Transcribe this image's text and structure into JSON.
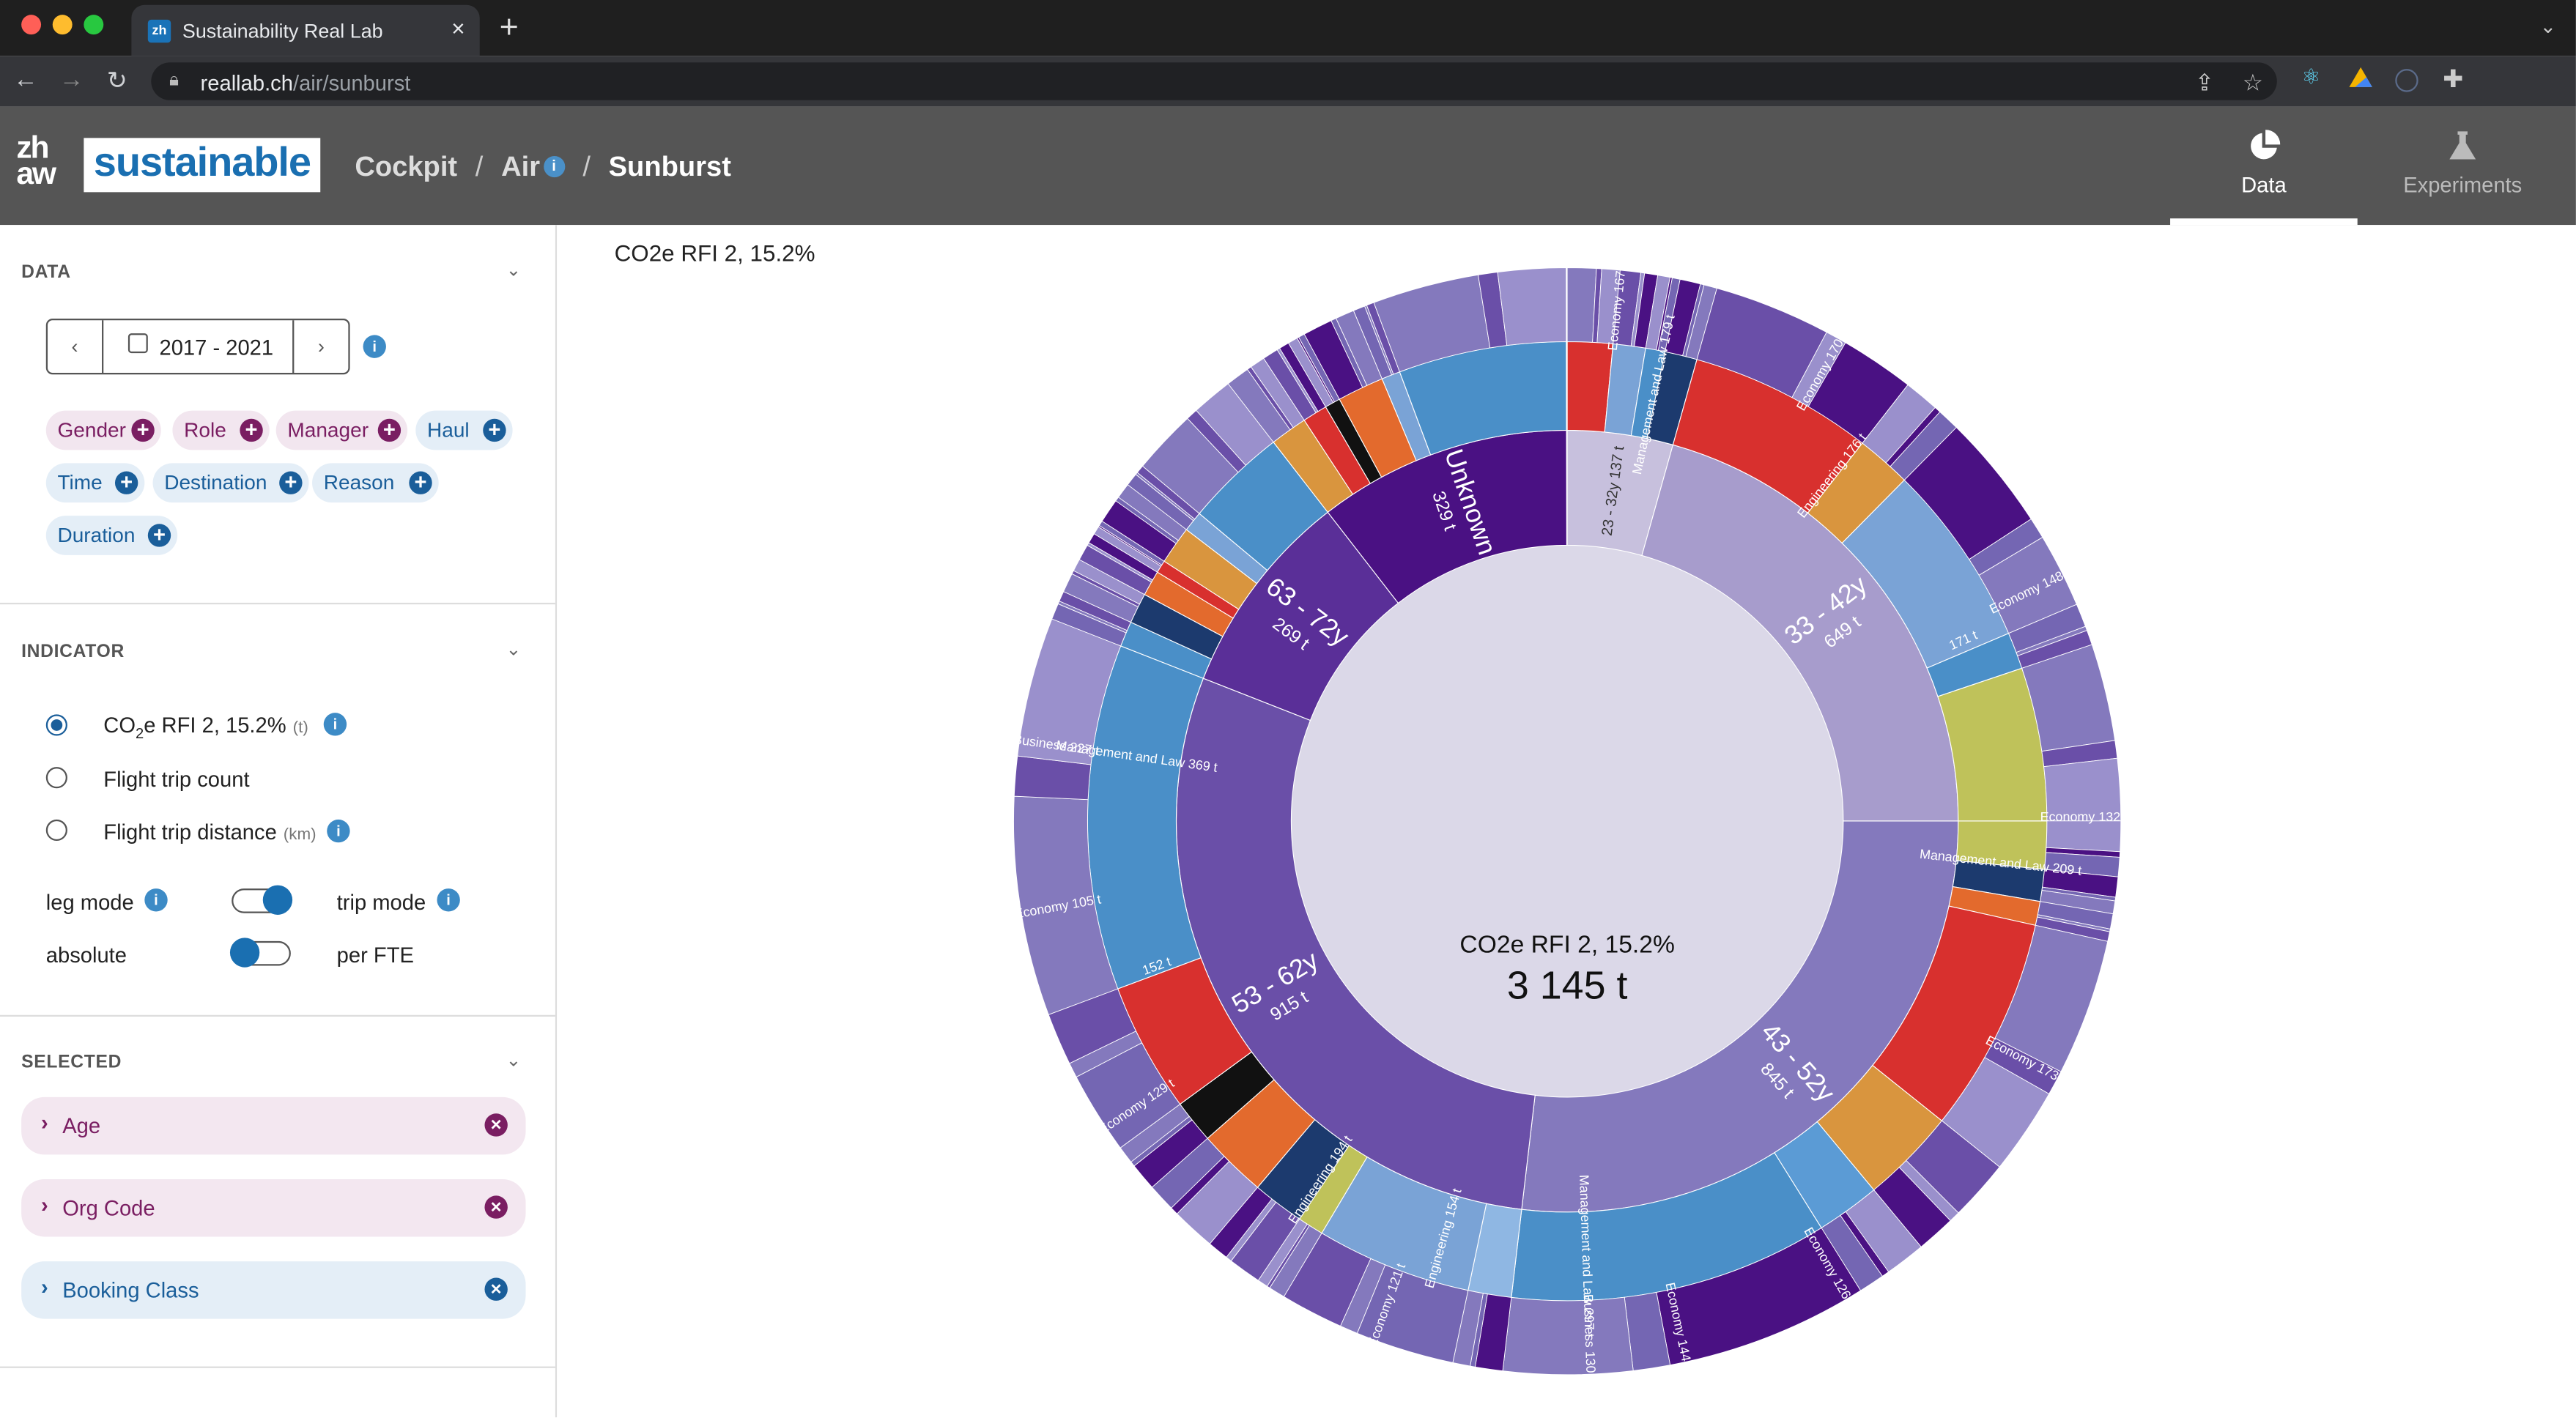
{
  "browser": {
    "tab_title": "Sustainability Real Lab",
    "url_host": "reallab.ch",
    "url_path": "/air/sunburst"
  },
  "header": {
    "logo_mark": "zh aw",
    "logo_text": "sustainable",
    "breadcrumb": [
      "Cockpit",
      "Air",
      "Sunburst"
    ],
    "nav": [
      {
        "label": "Data",
        "active": true,
        "icon": "pie-chart-icon"
      },
      {
        "label": "Experiments",
        "active": false,
        "icon": "flask-icon"
      }
    ]
  },
  "sidebar": {
    "data_section": {
      "title": "DATA",
      "date_range": "2017 - 2021",
      "chips": [
        {
          "label": "Gender",
          "kind": "person"
        },
        {
          "label": "Role",
          "kind": "person"
        },
        {
          "label": "Manager",
          "kind": "person"
        },
        {
          "label": "Haul",
          "kind": "trip"
        },
        {
          "label": "Time",
          "kind": "trip"
        },
        {
          "label": "Destination",
          "kind": "trip"
        },
        {
          "label": "Reason",
          "kind": "trip"
        },
        {
          "label": "Duration",
          "kind": "trip"
        }
      ]
    },
    "indicator_section": {
      "title": "INDICATOR",
      "options": [
        {
          "label_a": "CO",
          "label_sub": "2",
          "label_b": "e RFI 2, 15.2%",
          "unit": "(t)",
          "selected": true
        },
        {
          "label_a": "Flight trip count",
          "unit": "",
          "selected": false
        },
        {
          "label_a": "Flight trip distance",
          "unit": "(km)",
          "selected": false
        }
      ],
      "toggles": [
        {
          "left": "leg mode",
          "right": "trip mode",
          "state": "right"
        },
        {
          "left": "absolute",
          "right": "per FTE",
          "state": "left"
        }
      ]
    },
    "selected_section": {
      "title": "SELECTED",
      "items": [
        {
          "label": "Age",
          "kind": "person"
        },
        {
          "label": "Org Code",
          "kind": "person"
        },
        {
          "label": "Booking Class",
          "kind": "trip"
        }
      ]
    }
  },
  "main": {
    "indicator_label": "CO2e RFI 2, 15.2%"
  },
  "colors": {
    "person_chip_bg": "#f2e6ef",
    "person_chip_fg": "#7a1e62",
    "trip_chip_bg": "#e4eef7",
    "trip_chip_fg": "#1a5e9a",
    "header_bg": "#555555",
    "brand_blue": "#1a6fb1"
  },
  "chart_data": {
    "type": "sunburst",
    "title": "CO2e RFI 2, 15.2%",
    "center_label": "CO2e RFI 2, 15.2%",
    "center_value": "3 145 t",
    "unit": "t",
    "total": 3145,
    "inner_ring": {
      "name": "Age",
      "segments": [
        {
          "label": "23 - 32y",
          "value": 137,
          "value_label": "137 t",
          "color": "#c7c0dd"
        },
        {
          "label": "33 - 42y",
          "value": 649,
          "value_label": "649 t",
          "color": "#a79ccc"
        },
        {
          "label": "43 - 52y",
          "value": 845,
          "value_label": "845 t",
          "color": "#8479bd"
        },
        {
          "label": "53 - 62y",
          "value": 915,
          "value_label": "915 t",
          "color": "#6a4fa8"
        },
        {
          "label": "63 - 72y",
          "value": 269,
          "value_label": "269 t",
          "color": "#5a2f98"
        },
        {
          "label": "Unknown",
          "value": 329,
          "value_label": "329 t",
          "color": "#4a1183"
        }
      ]
    },
    "middle_ring_labels": [
      {
        "parent": "23 - 32y",
        "label": "",
        "value": null
      },
      {
        "parent": "33 - 42y",
        "label": "Engineering",
        "value": 176,
        "value_label": "176 t"
      },
      {
        "parent": "33 - 42y",
        "label": "",
        "value": 171,
        "value_label": "171 t"
      },
      {
        "parent": "33 - 42y",
        "label": "Management and Law",
        "value": 209,
        "value_label": "209 t"
      },
      {
        "parent": "43 - 52y",
        "label": "Engineering",
        "value": 194,
        "value_label": "194 t"
      },
      {
        "parent": "43 - 52y",
        "label": "Management and Law",
        "value": 297,
        "value_label": "297 t"
      },
      {
        "parent": "53 - 62y",
        "label": "Engineering",
        "value": 154,
        "value_label": "154 t"
      },
      {
        "parent": "53 - 62y",
        "label": "",
        "value": 152,
        "value_label": "152 t"
      },
      {
        "parent": "53 - 62y",
        "label": "Management and Law",
        "value": 369,
        "value_label": "369 t"
      },
      {
        "parent": "Unknown",
        "label": "Management and Law",
        "value": 179,
        "value_label": "179 t"
      }
    ],
    "outer_ring_labels": [
      {
        "label": "Economy",
        "value": 167,
        "value_label": "167 t"
      },
      {
        "label": "Economy",
        "value": 170,
        "value_label": "170 t"
      },
      {
        "label": "Economy",
        "value": 148,
        "value_label": "148 t"
      },
      {
        "label": "Economy",
        "value": 132,
        "value_label": "132 t"
      },
      {
        "label": "Economy",
        "value": 173,
        "value_label": "173 t"
      },
      {
        "label": "Economy",
        "value": 126,
        "value_label": "126 t"
      },
      {
        "label": "Economy",
        "value": 144,
        "value_label": "144 t"
      },
      {
        "label": "Business",
        "value": 130,
        "value_label": "130 t"
      },
      {
        "label": "Economy",
        "value": 121,
        "value_label": "121 t"
      },
      {
        "label": "Economy",
        "value": 129,
        "value_label": "129 t"
      },
      {
        "label": "Economy",
        "value": 105,
        "value_label": "105 t"
      },
      {
        "label": "Business",
        "value": 227,
        "value_label": "227 t"
      }
    ]
  }
}
